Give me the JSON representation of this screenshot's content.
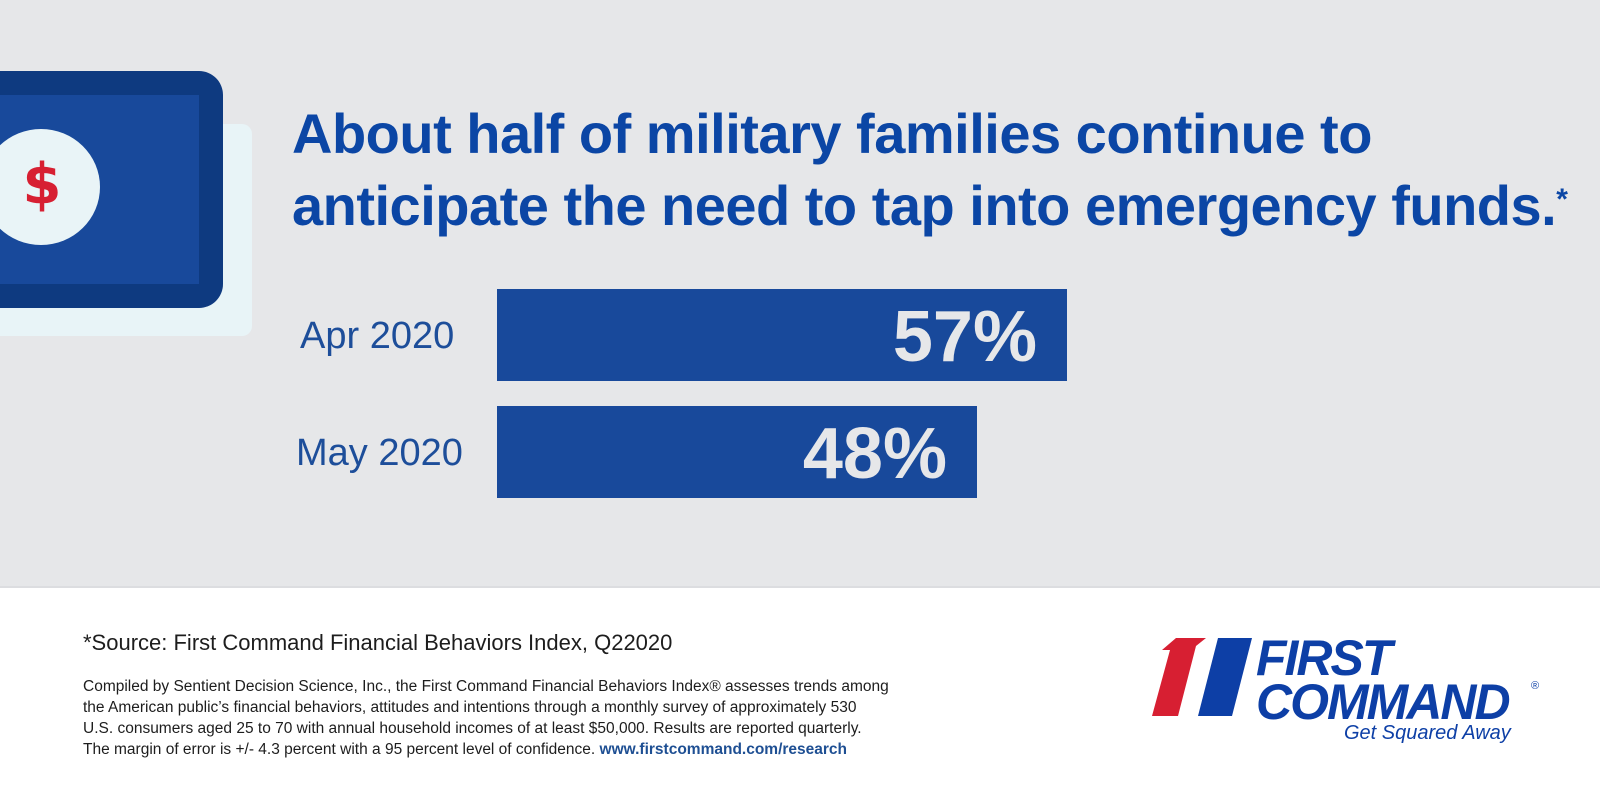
{
  "headline": {
    "text": "About half of military families continue to anticipate the need to tap into emergency funds.",
    "footnote_marker": "*"
  },
  "illustration": {
    "icon": "dollar-icon",
    "glyph": "$"
  },
  "chart_data": {
    "type": "bar",
    "orientation": "horizontal",
    "title": "About half of military families continue to anticipate the need to tap into emergency funds.",
    "categories": [
      "Apr 2020",
      "May 2020"
    ],
    "values": [
      57,
      48
    ],
    "value_labels": [
      "57%",
      "48%"
    ],
    "unit": "%",
    "xlabel": "",
    "ylabel": "",
    "xlim": [
      0,
      100
    ],
    "grid": false,
    "legend": "none",
    "bar_color": "#18499b"
  },
  "footer": {
    "source": "*Source: First Command Financial Behaviors Index, Q22020",
    "fineprint_lines": [
      "Compiled by Sentient Decision Science, Inc., the First Command Financial Behaviors Index® assesses trends among",
      "the American public’s financial behaviors, attitudes and intentions through a monthly survey of approximately 530",
      "U.S. consumers aged 25 to 70 with annual household incomes of at least $50,000. Results are reported quarterly.",
      "The margin of error is +/- 4.3 percent with a 95 percent level of confidence."
    ],
    "link_text": "www.firstcommand.com/research"
  },
  "logo": {
    "line1": "FIRST",
    "line2": "COMMAND",
    "registered": "®",
    "tagline": "Get Squared Away",
    "colors": {
      "red": "#d71f32",
      "blue": "#0d3fa6"
    }
  }
}
